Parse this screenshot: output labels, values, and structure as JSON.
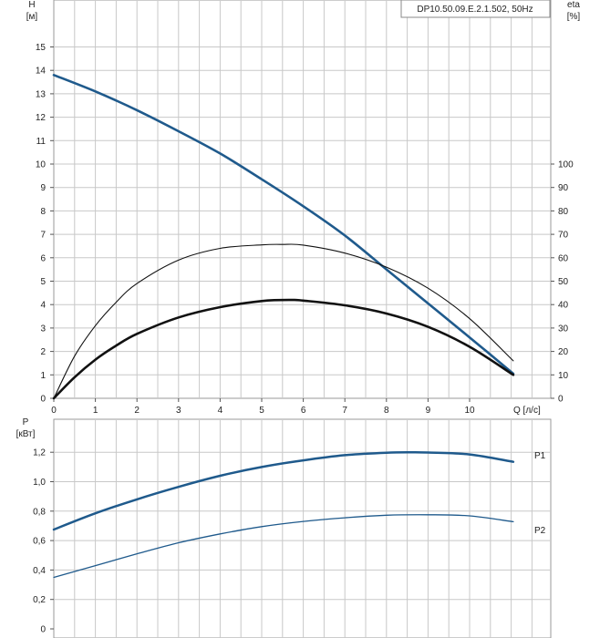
{
  "title": "DP10.50.09.E.2.1.502, 50Hz",
  "colors": {
    "head_curve": "#1f5a8c",
    "eta_curve": "#111111",
    "power_curve": "#1f5a8c",
    "grid": "#c8c8c8",
    "axis": "#555555",
    "power_label": "#2a6bb0"
  },
  "chart_data": [
    {
      "type": "line",
      "title": "DP10.50.09.E.2.1.502, 50Hz",
      "xlabel": "Q [л/с]",
      "ylabel_left": "H",
      "ylabel_left_unit": "[м]",
      "ylabel_right": "eta",
      "ylabel_right_unit": "[%]",
      "xlim": [
        0,
        12
      ],
      "ylim_left": [
        0,
        16
      ],
      "ylim_right": [
        0,
        160
      ],
      "x_ticks": [
        0,
        1,
        2,
        3,
        4,
        5,
        6,
        7,
        8,
        9,
        10
      ],
      "x_tick_labels": [
        "0",
        "1",
        "2",
        "3",
        "4",
        "5",
        "6",
        "7",
        "8",
        "9",
        "10"
      ],
      "y_left_ticks": [
        0,
        1,
        2,
        3,
        4,
        5,
        6,
        7,
        8,
        9,
        10,
        11,
        12,
        13,
        14,
        15
      ],
      "y_left_tick_labels": [
        "0",
        "1",
        "2",
        "3",
        "4",
        "5",
        "6",
        "7",
        "8",
        "9",
        "10",
        "11",
        "12",
        "13",
        "14",
        "15"
      ],
      "y_right_ticks": [
        0,
        10,
        20,
        30,
        40,
        50,
        60,
        70,
        80,
        90,
        100
      ],
      "y_right_tick_labels": [
        "0",
        "10",
        "20",
        "30",
        "40",
        "50",
        "60",
        "70",
        "80",
        "90",
        "100"
      ],
      "grid": true,
      "series": [
        {
          "axis": "left",
          "x": [
            0,
            1,
            2,
            3,
            4,
            5,
            6,
            7,
            8,
            9,
            10,
            11.05
          ],
          "y": [
            13.8,
            13.1,
            12.3,
            11.4,
            10.45,
            9.35,
            8.2,
            6.95,
            5.5,
            4.05,
            2.6,
            1.05
          ]
        },
        {
          "axis": "right",
          "x": [
            0,
            0.5,
            1,
            1.5,
            2,
            3,
            4,
            5,
            5.5,
            6,
            7,
            8,
            9,
            10,
            11.05
          ],
          "y": [
            0,
            18,
            31,
            41,
            49,
            59,
            64,
            65.5,
            65.7,
            65.4,
            62,
            56,
            47,
            34,
            16
          ]
        },
        {
          "axis": "right",
          "x": [
            0,
            0.5,
            1,
            1.5,
            2,
            3,
            4,
            5,
            5.7,
            6,
            7,
            8,
            9,
            10,
            11.05
          ],
          "y": [
            0,
            9,
            16.5,
            22.5,
            27.5,
            34.5,
            38.9,
            41.5,
            42,
            41.7,
            39.7,
            36.2,
            30.5,
            22,
            10
          ]
        }
      ]
    },
    {
      "type": "line",
      "ylabel": "P",
      "ylabel_unit": "[кВт]",
      "xlim": [
        0,
        12
      ],
      "ylim": [
        0,
        1.4
      ],
      "y_ticks": [
        0,
        0.2,
        0.4,
        0.6,
        0.8,
        1.0,
        1.2
      ],
      "y_tick_labels": [
        "0",
        "0,2",
        "0,4",
        "0,6",
        "0,8",
        "1,0",
        "1,2"
      ],
      "grid": true,
      "series": [
        {
          "name": "P1",
          "x": [
            0,
            1,
            2,
            3,
            4,
            5,
            6,
            7,
            8,
            8.6,
            9,
            10,
            11.05
          ],
          "y": [
            0.675,
            0.785,
            0.88,
            0.965,
            1.04,
            1.1,
            1.145,
            1.18,
            1.197,
            1.2,
            1.198,
            1.185,
            1.135
          ]
        },
        {
          "name": "P2",
          "x": [
            0,
            1,
            2,
            3,
            4,
            5,
            6,
            7,
            8,
            9,
            10,
            11.05
          ],
          "y": [
            0.35,
            0.43,
            0.51,
            0.585,
            0.645,
            0.695,
            0.73,
            0.755,
            0.772,
            0.775,
            0.768,
            0.728
          ]
        }
      ]
    }
  ]
}
